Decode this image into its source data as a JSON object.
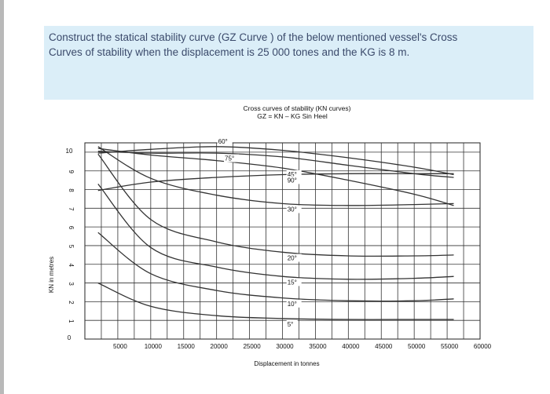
{
  "question": {
    "text": "Construct the statical stability curve (GZ Curve ) of the below mentioned vessel's Cross\nCurves of stability when the displacement is 25 000 tones and the KG is 8 m."
  },
  "chart_data": {
    "type": "line",
    "title": "Cross curves of stability (KN curves)",
    "subtitle": "GZ = KN – KG  Sin Heel",
    "xlabel": "Displacement in tonnes",
    "ylabel": "KN in metres",
    "xlim": [
      0,
      60000
    ],
    "ylim": [
      0,
      10.5
    ],
    "x_tick_labels": [
      "5000",
      "10000",
      "15000",
      "20000",
      "25000",
      "30000",
      "35000",
      "40000",
      "45000",
      "50000",
      "55000",
      "60000"
    ],
    "y_tick_labels": [
      "0",
      "1",
      "2",
      "3",
      "4",
      "5",
      "6",
      "7",
      "8",
      "9",
      "10"
    ],
    "grid": true,
    "series": [
      {
        "name": "60°",
        "x": [
          2000,
          10000,
          20000,
          30000,
          40000,
          50000,
          56000
        ],
        "y": [
          9.95,
          10.15,
          10.3,
          10.1,
          9.7,
          9.2,
          8.8
        ]
      },
      {
        "name": "75°",
        "x": [
          2000,
          10000,
          20000,
          30000,
          40000,
          50000,
          56000
        ],
        "y": [
          10.05,
          9.95,
          9.95,
          9.75,
          9.3,
          8.85,
          8.65
        ]
      },
      {
        "name": "45°",
        "x": [
          2000,
          10000,
          20000,
          30000,
          40000,
          50000,
          56000
        ],
        "y": [
          10.2,
          9.85,
          9.55,
          9.15,
          8.5,
          7.75,
          7.15
        ]
      },
      {
        "name": "90°",
        "x": [
          2000,
          10000,
          20000,
          30000,
          40000,
          50000,
          56000
        ],
        "y": [
          7.95,
          8.4,
          8.65,
          8.8,
          8.85,
          8.85,
          8.85
        ]
      },
      {
        "name": "30°",
        "x": [
          2000,
          10000,
          20000,
          30000,
          40000,
          50000,
          56000
        ],
        "y": [
          10.3,
          8.6,
          7.7,
          7.25,
          7.15,
          7.2,
          7.25
        ]
      },
      {
        "name": "20°",
        "x": [
          2000,
          10000,
          20000,
          30000,
          40000,
          50000,
          56000
        ],
        "y": [
          9.9,
          6.4,
          5.2,
          4.65,
          4.45,
          4.45,
          4.5
        ]
      },
      {
        "name": "15°",
        "x": [
          2000,
          10000,
          20000,
          30000,
          40000,
          50000,
          56000
        ],
        "y": [
          8.3,
          4.9,
          3.85,
          3.35,
          3.2,
          3.25,
          3.35
        ]
      },
      {
        "name": "10°",
        "x": [
          2000,
          10000,
          20000,
          30000,
          40000,
          50000,
          56000
        ],
        "y": [
          5.7,
          3.5,
          2.6,
          2.2,
          2.05,
          2.05,
          2.15
        ]
      },
      {
        "name": "5°",
        "x": [
          2000,
          10000,
          20000,
          30000,
          40000,
          50000,
          56000
        ],
        "y": [
          3.0,
          1.75,
          1.25,
          1.1,
          1.05,
          1.05,
          1.05
        ]
      }
    ]
  }
}
